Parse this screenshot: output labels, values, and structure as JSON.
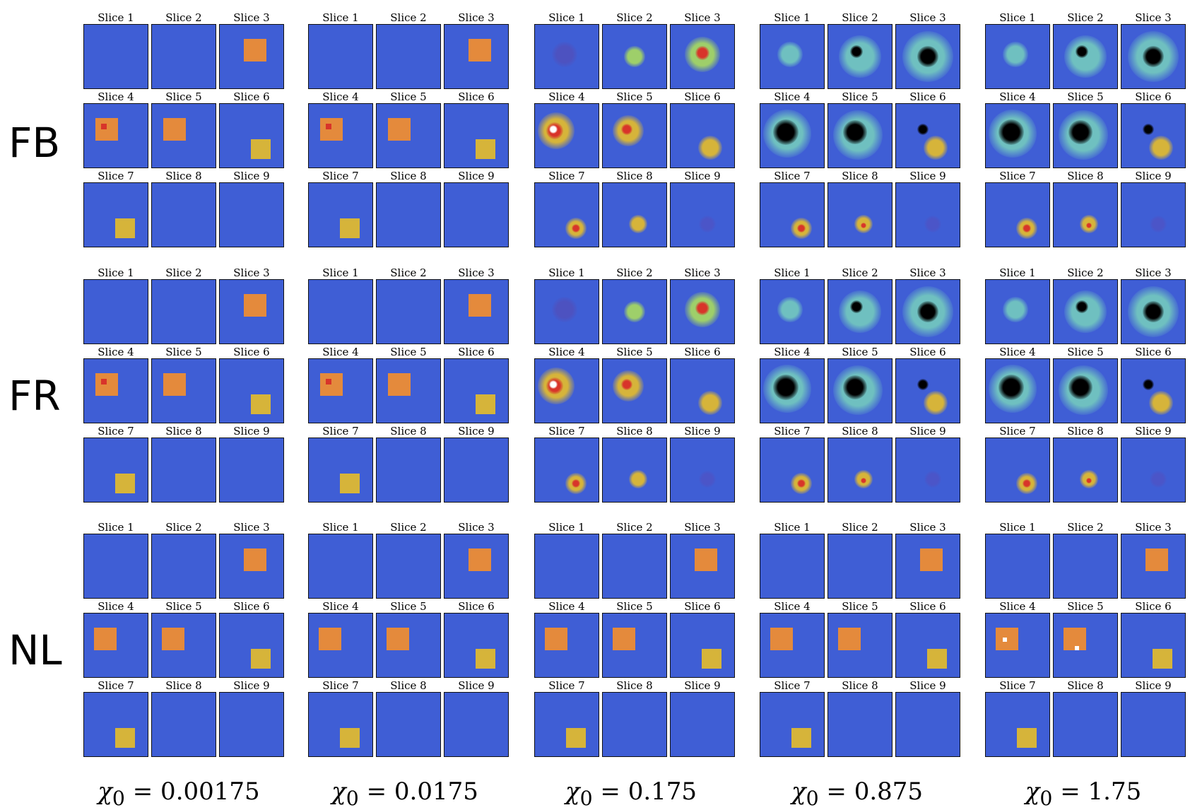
{
  "figure": {
    "rows": [
      {
        "label": "FB"
      },
      {
        "label": "FR"
      },
      {
        "label": "NL"
      }
    ],
    "columns": [
      {
        "caption": "χ0 = 0.00175",
        "symbol": "χ",
        "sub": "0",
        "value": "= 0.00175"
      },
      {
        "caption": "χ0 = 0.0175",
        "symbol": "χ",
        "sub": "0",
        "value": "= 0.0175"
      },
      {
        "caption": "χ0 = 0.175",
        "symbol": "χ",
        "sub": "0",
        "value": "= 0.175"
      },
      {
        "caption": "χ0 = 0.875",
        "symbol": "χ",
        "sub": "0",
        "value": "= 0.875"
      },
      {
        "caption": "χ0 = 1.75",
        "symbol": "χ",
        "sub": "0",
        "value": "= 1.75"
      }
    ],
    "slice_titles": [
      "Slice 1",
      "Slice 2",
      "Slice 3",
      "Slice 4",
      "Slice 5",
      "Slice 6",
      "Slice 7",
      "Slice 8",
      "Slice 9"
    ],
    "colors": {
      "background": "#3f5ed5",
      "orange": "#e48a3c",
      "gold": "#d6b43a",
      "red": "#d8342a",
      "cyan": "#6fc0c0",
      "green": "#9ecf6a",
      "black": "#000000",
      "white": "#ffffff"
    }
  }
}
